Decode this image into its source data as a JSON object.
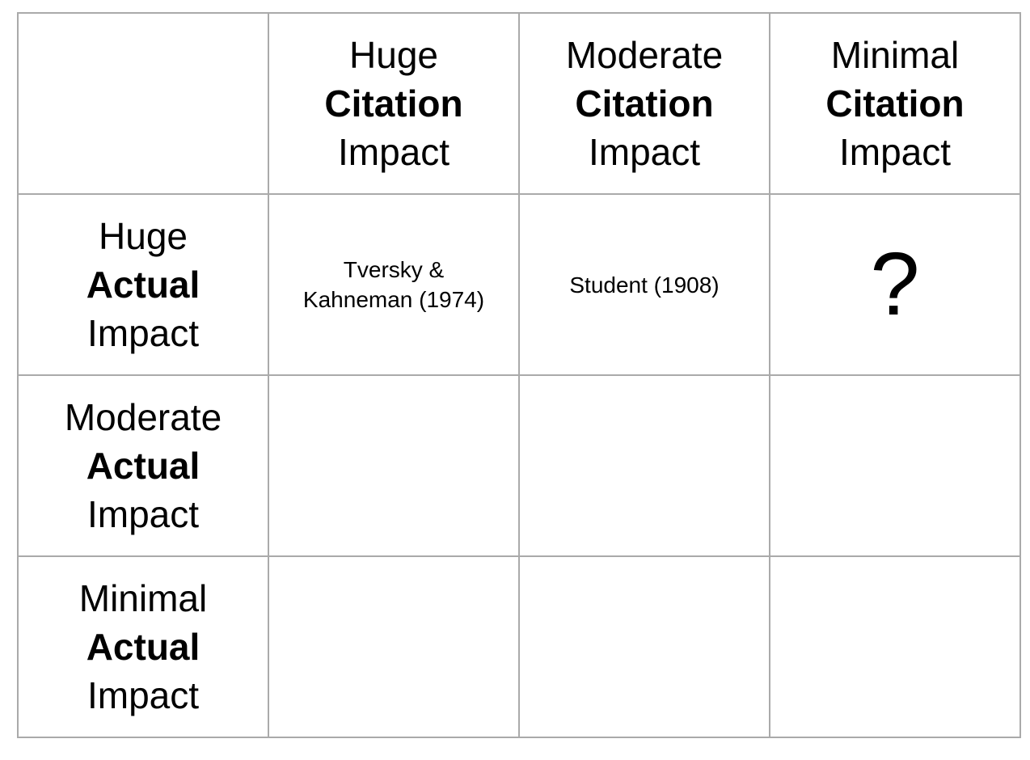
{
  "table": {
    "columns": [
      [
        "Huge",
        "Citation",
        "Impact"
      ],
      [
        "Moderate",
        "Citation",
        "Impact"
      ],
      [
        "Minimal",
        "Citation",
        "Impact"
      ]
    ],
    "rows": [
      {
        "header": [
          "Huge",
          "Actual",
          "Impact"
        ],
        "cells": [
          "Tversky & Kahneman (1974)",
          "Student (1908)",
          "?"
        ]
      },
      {
        "header": [
          "Moderate",
          "Actual",
          "Impact"
        ]
      },
      {
        "header": [
          "Minimal",
          "Actual",
          "Impact"
        ]
      }
    ]
  }
}
